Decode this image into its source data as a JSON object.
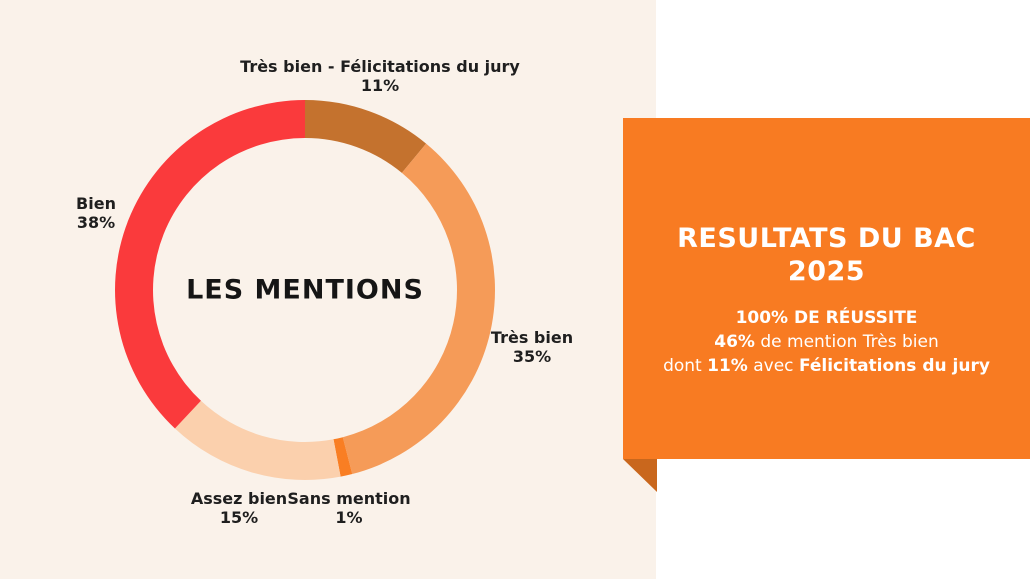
{
  "background": {
    "left_color": "#FAF2EA",
    "right_panel_color": "#FFFFFF"
  },
  "chart_data": {
    "type": "pie",
    "donut": true,
    "title": "LES MENTIONS",
    "start_angle_deg": 0,
    "direction": "clockwise",
    "legend_position": "around",
    "segments": [
      {
        "label": "Très bien - Félicitations du jury",
        "value": 11,
        "pct_label": "11%",
        "color": "#C4722E"
      },
      {
        "label": "Très bien",
        "value": 35,
        "pct_label": "35%",
        "color": "#F59B58"
      },
      {
        "label": "Sans mention",
        "value": 1,
        "pct_label": "1%",
        "color": "#F97E23"
      },
      {
        "label": "Assez bien",
        "value": 15,
        "pct_label": "15%",
        "color": "#FBD0AD"
      },
      {
        "label": "Bien",
        "value": 38,
        "pct_label": "38%",
        "color": "#FA3A3C"
      }
    ]
  },
  "card": {
    "color": "#F87B22",
    "fold_color": "#C9671D",
    "title_line1": "RESULTATS DU BAC",
    "title_line2": "2025",
    "line1": "100% DE RÉUSSITE",
    "line2_bold": "46%",
    "line2_rest": " de mention Très bien",
    "line3_pre": "dont ",
    "line3_bold1": "11%",
    "line3_mid": " avec ",
    "line3_bold2": "Félicitations du jury"
  }
}
